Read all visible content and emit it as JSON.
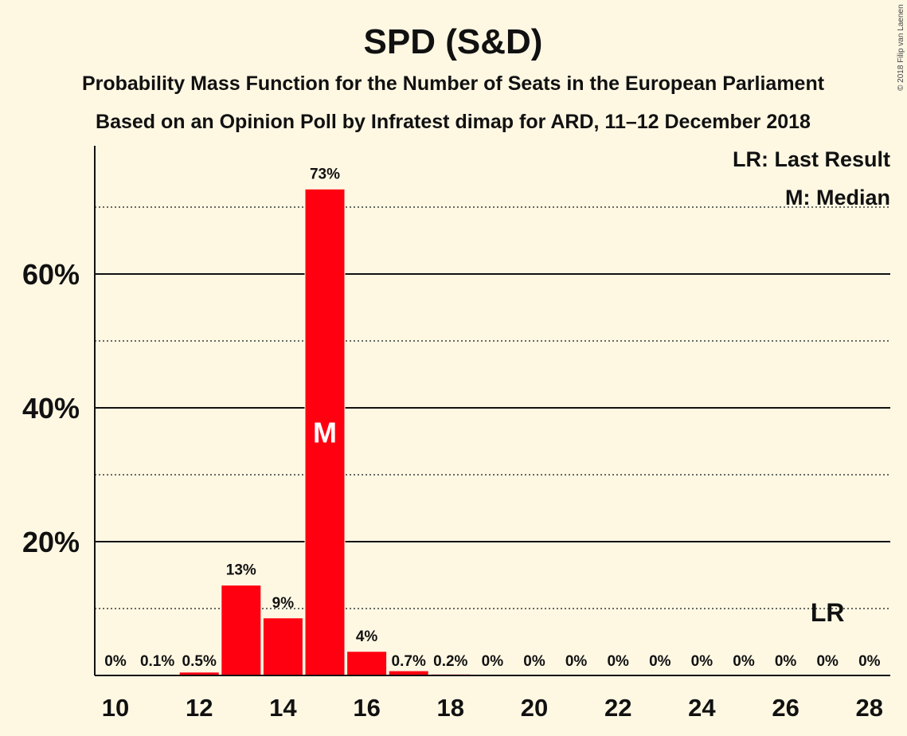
{
  "chart_data": {
    "type": "bar",
    "title": "SPD (S&D)",
    "subtitle_1": "Probability Mass Function for the Number of Seats in the European Parliament",
    "subtitle_2": "Based on an Opinion Poll by Infratest dimap for ARD, 11–12 December 2018",
    "copyright": "© 2018 Filip van Laenen",
    "x": [
      10,
      11,
      12,
      13,
      14,
      15,
      16,
      17,
      18,
      19,
      20,
      21,
      22,
      23,
      24,
      25,
      26,
      27,
      28
    ],
    "values": [
      0.0,
      0.1,
      0.5,
      13.5,
      8.6,
      72.7,
      3.6,
      0.7,
      0.2,
      0,
      0,
      0,
      0,
      0,
      0,
      0,
      0,
      0,
      0
    ],
    "data_labels": [
      "0%",
      "0.1%",
      "0.5%",
      "13%",
      "9%",
      "73%",
      "4%",
      "0.7%",
      "0.2%",
      "0%",
      "0%",
      "0%",
      "0%",
      "0%",
      "0%",
      "0%",
      "0%",
      "0%",
      "0%"
    ],
    "x_ticks": [
      10,
      12,
      14,
      16,
      18,
      20,
      22,
      24,
      26,
      28
    ],
    "x_tick_labels": [
      "10",
      "12",
      "14",
      "16",
      "18",
      "20",
      "22",
      "24",
      "26",
      "28"
    ],
    "y_ticks": [
      20,
      40,
      60
    ],
    "y_tick_labels": [
      "20%",
      "40%",
      "60%"
    ],
    "ylim": [
      0,
      79
    ],
    "grid_solid": [
      20,
      40,
      60
    ],
    "grid_dotted": [
      10,
      30,
      50,
      70
    ],
    "median_seats": 15,
    "median_marker": "M",
    "last_result_seats": 27,
    "last_result_marker": "LR",
    "legend": [
      "LR: Last Result",
      "M: Median"
    ],
    "legend_position": "top-right",
    "bar_color": "#ff0010",
    "background_color": "#fef8e3"
  }
}
